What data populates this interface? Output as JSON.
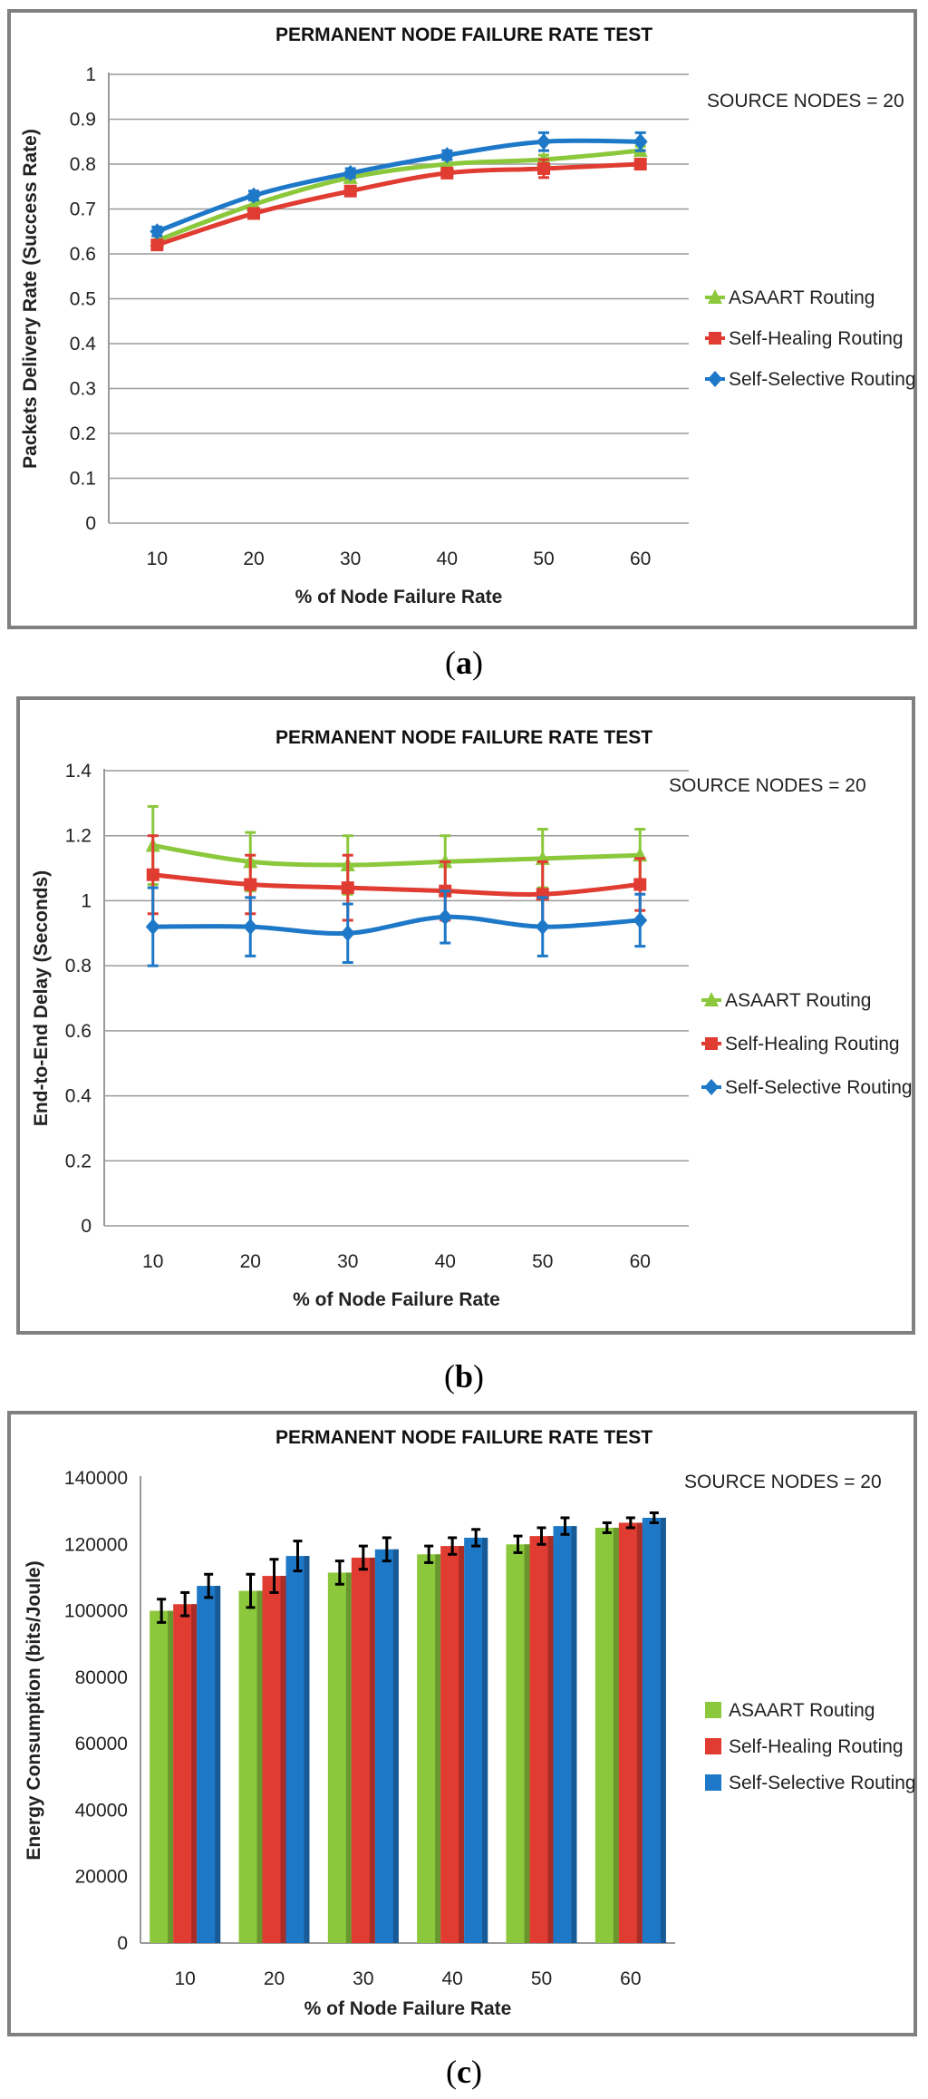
{
  "chart_data": [
    {
      "type": "line",
      "title": "PERMANENT NODE FAILURE RATE TEST",
      "annotation": "SOURCE NODES = 20",
      "caption": "a",
      "xlabel": "% of Node Failure Rate",
      "ylabel": "Packets Delivery Rate (Success Rate)",
      "categories": [
        "10",
        "20",
        "30",
        "40",
        "50",
        "60"
      ],
      "ylim": [
        0,
        1
      ],
      "yticks": [
        "0",
        "0.1",
        "0.2",
        "0.3",
        "0.4",
        "0.5",
        "0.6",
        "0.7",
        "0.8",
        "0.9",
        "1"
      ],
      "grid": true,
      "legend_position": "right",
      "series": [
        {
          "name": "ASAART Routing",
          "color": "#8cc83c",
          "marker": "triangle",
          "values": [
            0.63,
            0.71,
            0.77,
            0.8,
            0.81,
            0.83
          ],
          "errors": [
            0.01,
            0.01,
            0.01,
            0.01,
            0.01,
            0.01
          ]
        },
        {
          "name": "Self-Healing Routing",
          "color": "#e03c32",
          "marker": "square",
          "values": [
            0.62,
            0.69,
            0.74,
            0.78,
            0.79,
            0.8
          ],
          "errors": [
            0.01,
            0.01,
            0.01,
            0.01,
            0.02,
            0.01
          ]
        },
        {
          "name": "Self-Selective Routing",
          "color": "#1e78c8",
          "marker": "diamond",
          "values": [
            0.65,
            0.73,
            0.78,
            0.82,
            0.85,
            0.85
          ],
          "errors": [
            0.01,
            0.01,
            0.01,
            0.01,
            0.02,
            0.02
          ]
        }
      ]
    },
    {
      "type": "line",
      "title": "PERMANENT NODE FAILURE RATE TEST",
      "annotation": "SOURCE NODES = 20",
      "caption": "b",
      "xlabel": "% of Node Failure Rate",
      "ylabel": "End-to-End Delay (Seconds)",
      "categories": [
        "10",
        "20",
        "30",
        "40",
        "50",
        "60"
      ],
      "ylim": [
        0,
        1.4
      ],
      "yticks": [
        "0",
        "0.2",
        "0.4",
        "0.6",
        "0.8",
        "1",
        "1.2",
        "1.4"
      ],
      "grid": true,
      "legend_position": "right",
      "series": [
        {
          "name": "ASAART Routing",
          "color": "#8cc83c",
          "marker": "triangle",
          "values": [
            1.17,
            1.12,
            1.11,
            1.12,
            1.13,
            1.14
          ],
          "errors": [
            0.12,
            0.09,
            0.09,
            0.08,
            0.09,
            0.08
          ]
        },
        {
          "name": "Self-Healing Routing",
          "color": "#e03c32",
          "marker": "square",
          "values": [
            1.08,
            1.05,
            1.04,
            1.03,
            1.02,
            1.05
          ],
          "errors": [
            0.12,
            0.09,
            0.1,
            0.09,
            0.1,
            0.08
          ]
        },
        {
          "name": "Self-Selective Routing",
          "color": "#1e78c8",
          "marker": "diamond",
          "values": [
            0.92,
            0.92,
            0.9,
            0.95,
            0.92,
            0.94
          ],
          "errors": [
            0.12,
            0.09,
            0.09,
            0.08,
            0.09,
            0.08
          ]
        }
      ]
    },
    {
      "type": "bar",
      "title": "PERMANENT NODE FAILURE RATE TEST",
      "annotation": "SOURCE NODES = 20",
      "caption": "c",
      "xlabel": "% of Node Failure Rate",
      "ylabel": "Energy Consumption (bits/Joule)",
      "categories": [
        "10",
        "20",
        "30",
        "40",
        "50",
        "60"
      ],
      "ylim": [
        0,
        140000
      ],
      "yticks": [
        "0",
        "20000",
        "40000",
        "60000",
        "80000",
        "100000",
        "120000",
        "140000"
      ],
      "grid": false,
      "legend_position": "right",
      "series": [
        {
          "name": "ASAART Routing",
          "color": "#8cc83c",
          "values": [
            100000,
            106000,
            111500,
            117000,
            120000,
            125000
          ],
          "errors": [
            3500,
            5000,
            3500,
            2500,
            2500,
            1500
          ]
        },
        {
          "name": "Self-Healing Routing",
          "color": "#e03c32",
          "values": [
            102000,
            110500,
            116000,
            119500,
            122500,
            126500
          ],
          "errors": [
            3500,
            5000,
            3500,
            2500,
            2500,
            1500
          ]
        },
        {
          "name": "Self-Selective Routing",
          "color": "#1e78c8",
          "values": [
            107500,
            116500,
            118500,
            122000,
            125500,
            128000
          ],
          "errors": [
            3500,
            4500,
            3500,
            2500,
            2500,
            1500
          ]
        }
      ]
    }
  ]
}
